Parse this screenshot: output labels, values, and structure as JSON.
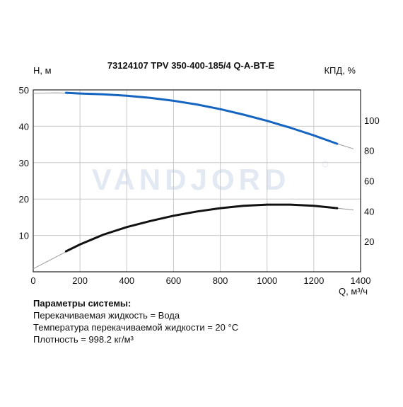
{
  "chart_data": {
    "type": "line",
    "title": "73124107 TPV 350-400-185/4 Q-A-BT-E",
    "xlabel": "Q, м³/ч",
    "ylabel_left": "H, м",
    "ylabel_right": "КПД, %",
    "watermark": "VANDJORD",
    "xlim": [
      0,
      1400
    ],
    "ylim_left": [
      0,
      50
    ],
    "ylim_right": [
      0,
      120
    ],
    "x_ticks": [
      0,
      200,
      400,
      600,
      800,
      1000,
      1200,
      1400
    ],
    "y_ticks_left": [
      10,
      20,
      30,
      40,
      50
    ],
    "y_ticks_right": [
      20,
      40,
      60,
      80,
      100
    ],
    "grid": true,
    "series": [
      {
        "axis": "left",
        "color": "#1565c0",
        "full_curve": {
          "x": [
            0,
            100,
            200,
            300,
            400,
            500,
            600,
            700,
            800,
            900,
            1000,
            1100,
            1200,
            1300,
            1370
          ],
          "y": [
            49.1,
            49.2,
            49.0,
            48.8,
            48.4,
            47.8,
            47.0,
            46.0,
            44.7,
            43.2,
            41.5,
            39.6,
            37.5,
            35.2,
            33.8
          ]
        },
        "operating_range": {
          "x": [
            140,
            200,
            300,
            400,
            500,
            600,
            700,
            800,
            900,
            1000,
            1100,
            1200,
            1300
          ],
          "y": [
            49.2,
            49.0,
            48.8,
            48.4,
            47.8,
            47.0,
            46.0,
            44.7,
            43.2,
            41.5,
            39.6,
            37.5,
            35.2
          ]
        }
      },
      {
        "axis": "right",
        "color": "#111111",
        "full_curve": {
          "x": [
            0,
            100,
            200,
            300,
            400,
            500,
            600,
            700,
            800,
            900,
            1000,
            1100,
            1200,
            1300,
            1370
          ],
          "y": [
            2,
            10,
            18,
            24.5,
            29.5,
            33.5,
            37,
            39.8,
            42,
            43.5,
            44.3,
            44.3,
            43.5,
            42,
            40.8
          ]
        },
        "operating_range": {
          "x": [
            140,
            200,
            300,
            400,
            500,
            600,
            700,
            800,
            900,
            1000,
            1100,
            1200,
            1300
          ],
          "y": [
            13.5,
            18,
            24.5,
            29.5,
            33.5,
            37,
            39.8,
            42,
            43.5,
            44.3,
            44.3,
            43.5,
            42
          ]
        }
      }
    ]
  },
  "params": {
    "title": "Параметры системы:",
    "lines": [
      "Перекачиваемая жидкость = Вода",
      "Температура перекачиваемой жидкости = 20 °C",
      "Плотность = 998.2 кг/м³"
    ]
  }
}
